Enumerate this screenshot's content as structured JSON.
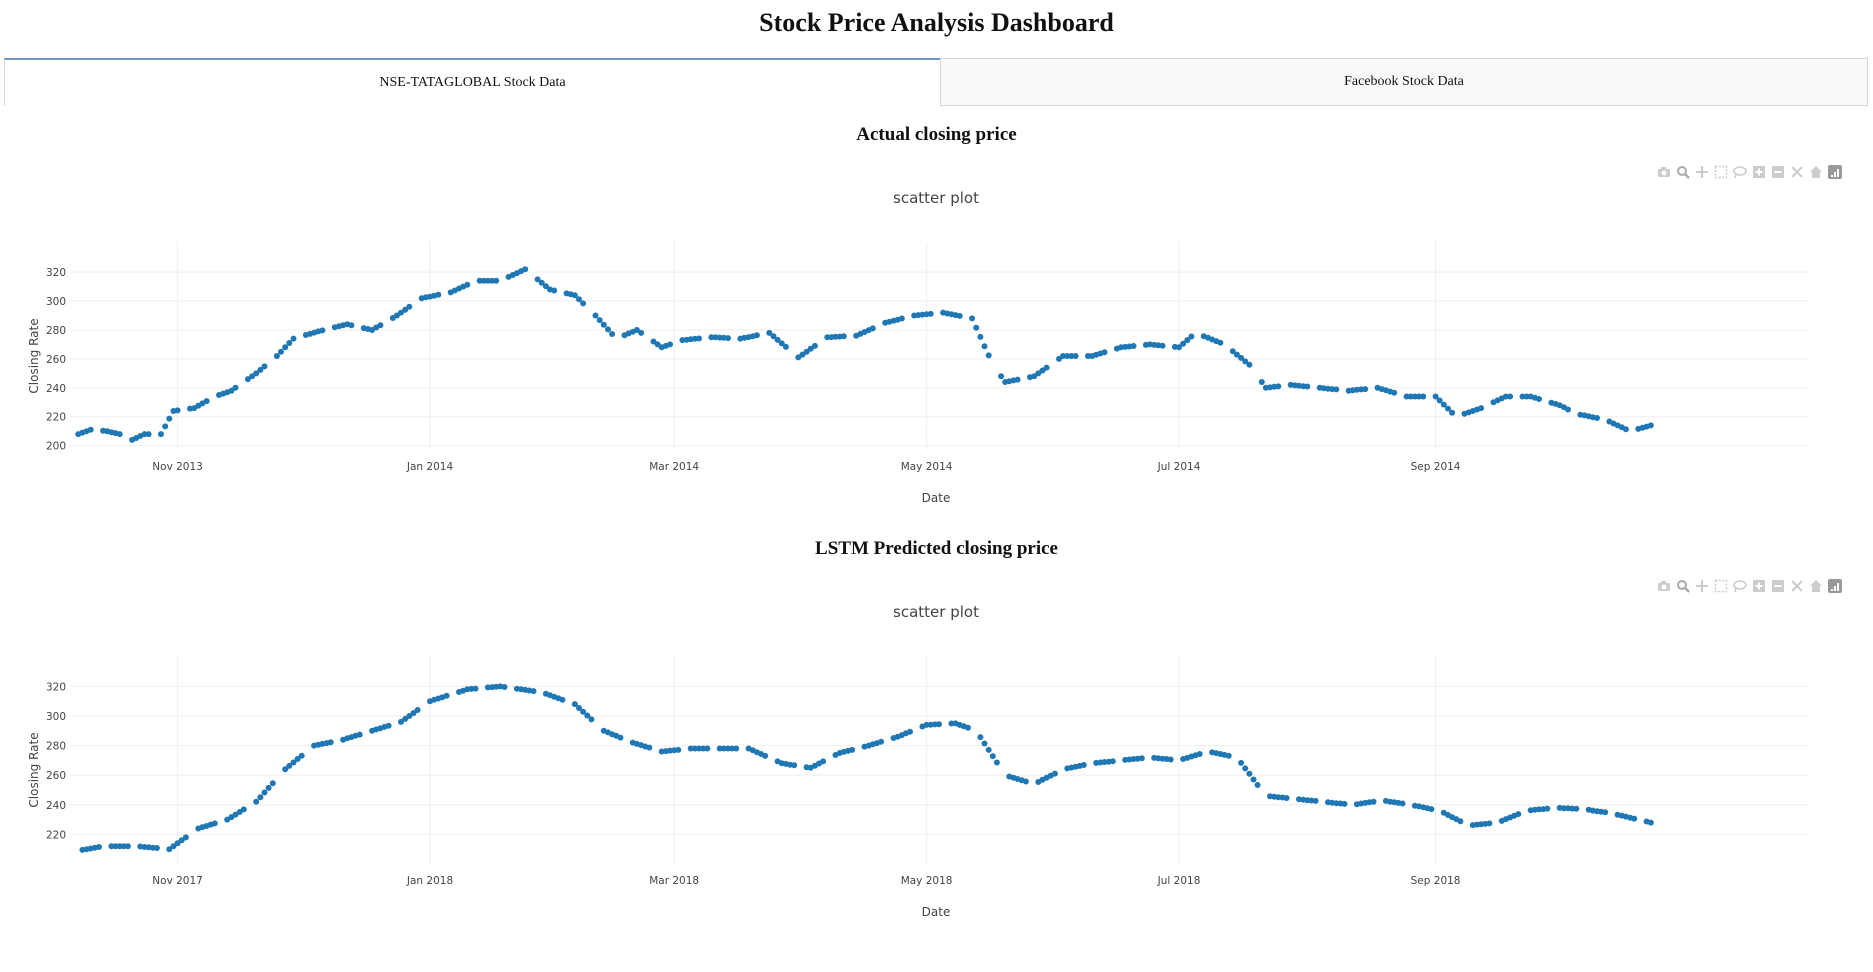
{
  "page": {
    "title": "Stock Price Analysis Dashboard"
  },
  "tabs": [
    {
      "label": "NSE-TATAGLOBAL Stock Data",
      "selected": true
    },
    {
      "label": "Facebook Stock Data",
      "selected": false
    }
  ],
  "modebar_icons": [
    "camera-icon",
    "zoom-icon",
    "pan-icon",
    "box-select-icon",
    "lasso-icon",
    "zoom-in-icon",
    "zoom-out-icon",
    "autoscale-icon",
    "home-icon",
    "plotly-logo-icon"
  ],
  "colors": {
    "marker": "#1f77b4",
    "grid": "#eeeeee",
    "tab_accent": "#6b97c7"
  },
  "chart_data": [
    {
      "section_title": "Actual closing price",
      "type": "scatter",
      "title": "scatter plot",
      "xlabel": "Date",
      "ylabel": "Closing Rate",
      "grid": true,
      "x_range": [
        "2013-10-06",
        "2014-11-30"
      ],
      "y_range": [
        197,
        327
      ],
      "x_ticks": [
        {
          "date": "2013-11-01",
          "label": "Nov 2013"
        },
        {
          "date": "2014-01-01",
          "label": "Jan 2014"
        },
        {
          "date": "2014-03-01",
          "label": "Mar 2014"
        },
        {
          "date": "2014-05-01",
          "label": "May 2014"
        },
        {
          "date": "2014-07-01",
          "label": "Jul 2014"
        },
        {
          "date": "2014-09-01",
          "label": "Sep 2014"
        }
      ],
      "y_ticks": [
        200,
        220,
        240,
        260,
        280,
        300,
        320
      ],
      "series": [
        {
          "start": "2013-10-08",
          "end": "2014-10-23",
          "anchors": [
            {
              "date": "2013-10-08",
              "y": 208
            },
            {
              "date": "2013-10-11",
              "y": 211
            },
            {
              "date": "2013-10-15",
              "y": 210
            },
            {
              "date": "2013-10-18",
              "y": 208
            },
            {
              "date": "2013-10-21",
              "y": 204
            },
            {
              "date": "2013-10-24",
              "y": 208
            },
            {
              "date": "2013-10-28",
              "y": 208
            },
            {
              "date": "2013-10-31",
              "y": 224
            },
            {
              "date": "2013-11-05",
              "y": 226
            },
            {
              "date": "2013-11-10",
              "y": 234
            },
            {
              "date": "2013-11-14",
              "y": 238
            },
            {
              "date": "2013-11-20",
              "y": 250
            },
            {
              "date": "2013-11-25",
              "y": 262
            },
            {
              "date": "2013-11-29",
              "y": 274
            },
            {
              "date": "2013-12-05",
              "y": 279
            },
            {
              "date": "2013-12-12",
              "y": 284
            },
            {
              "date": "2013-12-18",
              "y": 280
            },
            {
              "date": "2013-12-24",
              "y": 290
            },
            {
              "date": "2013-12-30",
              "y": 302
            },
            {
              "date": "2014-01-06",
              "y": 306
            },
            {
              "date": "2014-01-12",
              "y": 314
            },
            {
              "date": "2014-01-18",
              "y": 314
            },
            {
              "date": "2014-01-24",
              "y": 322
            },
            {
              "date": "2014-01-30",
              "y": 308
            },
            {
              "date": "2014-02-05",
              "y": 304
            },
            {
              "date": "2014-02-10",
              "y": 290
            },
            {
              "date": "2014-02-15",
              "y": 274
            },
            {
              "date": "2014-02-20",
              "y": 280
            },
            {
              "date": "2014-02-26",
              "y": 268
            },
            {
              "date": "2014-03-03",
              "y": 273
            },
            {
              "date": "2014-03-10",
              "y": 275
            },
            {
              "date": "2014-03-17",
              "y": 274
            },
            {
              "date": "2014-03-24",
              "y": 278
            },
            {
              "date": "2014-03-31",
              "y": 261
            },
            {
              "date": "2014-04-07",
              "y": 275
            },
            {
              "date": "2014-04-14",
              "y": 276
            },
            {
              "date": "2014-04-21",
              "y": 285
            },
            {
              "date": "2014-04-28",
              "y": 290
            },
            {
              "date": "2014-05-05",
              "y": 292
            },
            {
              "date": "2014-05-12",
              "y": 288
            },
            {
              "date": "2014-05-17",
              "y": 256
            },
            {
              "date": "2014-05-20",
              "y": 244
            },
            {
              "date": "2014-05-27",
              "y": 248
            },
            {
              "date": "2014-06-03",
              "y": 262
            },
            {
              "date": "2014-06-10",
              "y": 262
            },
            {
              "date": "2014-06-17",
              "y": 268
            },
            {
              "date": "2014-06-24",
              "y": 270
            },
            {
              "date": "2014-07-01",
              "y": 268
            },
            {
              "date": "2014-07-05",
              "y": 278
            },
            {
              "date": "2014-07-12",
              "y": 270
            },
            {
              "date": "2014-07-18",
              "y": 256
            },
            {
              "date": "2014-07-22",
              "y": 240
            },
            {
              "date": "2014-07-28",
              "y": 242
            },
            {
              "date": "2014-08-04",
              "y": 240
            },
            {
              "date": "2014-08-11",
              "y": 238
            },
            {
              "date": "2014-08-18",
              "y": 240
            },
            {
              "date": "2014-08-25",
              "y": 234
            },
            {
              "date": "2014-09-01",
              "y": 234
            },
            {
              "date": "2014-09-06",
              "y": 220
            },
            {
              "date": "2014-09-12",
              "y": 226
            },
            {
              "date": "2014-09-18",
              "y": 234
            },
            {
              "date": "2014-09-24",
              "y": 234
            },
            {
              "date": "2014-10-01",
              "y": 228
            },
            {
              "date": "2014-10-05",
              "y": 222
            },
            {
              "date": "2014-10-12",
              "y": 218
            },
            {
              "date": "2014-10-18",
              "y": 210
            },
            {
              "date": "2014-10-23",
              "y": 214
            }
          ]
        }
      ]
    },
    {
      "section_title": "LSTM Predicted closing price",
      "type": "scatter",
      "title": "scatter plot",
      "xlabel": "Date",
      "ylabel": "Closing Rate",
      "grid": true,
      "x_range": [
        "2017-10-06",
        "2018-11-30"
      ],
      "y_range": [
        200,
        327
      ],
      "x_ticks": [
        {
          "date": "2017-11-01",
          "label": "Nov 2017"
        },
        {
          "date": "2018-01-01",
          "label": "Jan 2018"
        },
        {
          "date": "2018-03-01",
          "label": "Mar 2018"
        },
        {
          "date": "2018-05-01",
          "label": "May 2018"
        },
        {
          "date": "2018-07-01",
          "label": "Jul 2018"
        },
        {
          "date": "2018-09-01",
          "label": "Sep 2018"
        }
      ],
      "y_ticks": [
        220,
        240,
        260,
        280,
        300,
        320
      ],
      "series": [
        {
          "start": "2017-10-08",
          "end": "2018-10-23",
          "anchors": [
            {
              "date": "2017-10-08",
              "y": 209
            },
            {
              "date": "2017-10-14",
              "y": 212
            },
            {
              "date": "2017-10-22",
              "y": 212
            },
            {
              "date": "2017-10-30",
              "y": 210
            },
            {
              "date": "2017-11-06",
              "y": 224
            },
            {
              "date": "2017-11-13",
              "y": 230
            },
            {
              "date": "2017-11-20",
              "y": 242
            },
            {
              "date": "2017-11-27",
              "y": 264
            },
            {
              "date": "2017-12-04",
              "y": 280
            },
            {
              "date": "2017-12-11",
              "y": 284
            },
            {
              "date": "2017-12-18",
              "y": 290
            },
            {
              "date": "2017-12-25",
              "y": 296
            },
            {
              "date": "2018-01-01",
              "y": 310
            },
            {
              "date": "2018-01-10",
              "y": 318
            },
            {
              "date": "2018-01-18",
              "y": 320
            },
            {
              "date": "2018-01-28",
              "y": 316
            },
            {
              "date": "2018-02-05",
              "y": 308
            },
            {
              "date": "2018-02-12",
              "y": 290
            },
            {
              "date": "2018-02-19",
              "y": 282
            },
            {
              "date": "2018-02-26",
              "y": 276
            },
            {
              "date": "2018-03-05",
              "y": 278
            },
            {
              "date": "2018-03-12",
              "y": 278
            },
            {
              "date": "2018-03-19",
              "y": 278
            },
            {
              "date": "2018-03-27",
              "y": 268
            },
            {
              "date": "2018-04-03",
              "y": 265
            },
            {
              "date": "2018-04-10",
              "y": 275
            },
            {
              "date": "2018-04-17",
              "y": 280
            },
            {
              "date": "2018-04-24",
              "y": 286
            },
            {
              "date": "2018-05-01",
              "y": 294
            },
            {
              "date": "2018-05-08",
              "y": 295
            },
            {
              "date": "2018-05-13",
              "y": 290
            },
            {
              "date": "2018-05-20",
              "y": 260
            },
            {
              "date": "2018-05-27",
              "y": 254
            },
            {
              "date": "2018-06-03",
              "y": 264
            },
            {
              "date": "2018-06-10",
              "y": 268
            },
            {
              "date": "2018-06-17",
              "y": 270
            },
            {
              "date": "2018-06-24",
              "y": 272
            },
            {
              "date": "2018-07-01",
              "y": 270
            },
            {
              "date": "2018-07-08",
              "y": 276
            },
            {
              "date": "2018-07-15",
              "y": 272
            },
            {
              "date": "2018-07-22",
              "y": 246
            },
            {
              "date": "2018-07-29",
              "y": 244
            },
            {
              "date": "2018-08-05",
              "y": 242
            },
            {
              "date": "2018-08-12",
              "y": 240
            },
            {
              "date": "2018-08-19",
              "y": 243
            },
            {
              "date": "2018-08-26",
              "y": 240
            },
            {
              "date": "2018-09-02",
              "y": 236
            },
            {
              "date": "2018-09-09",
              "y": 226
            },
            {
              "date": "2018-09-16",
              "y": 228
            },
            {
              "date": "2018-09-23",
              "y": 236
            },
            {
              "date": "2018-09-30",
              "y": 238
            },
            {
              "date": "2018-10-07",
              "y": 237
            },
            {
              "date": "2018-10-14",
              "y": 234
            },
            {
              "date": "2018-10-23",
              "y": 228
            }
          ]
        }
      ]
    }
  ]
}
